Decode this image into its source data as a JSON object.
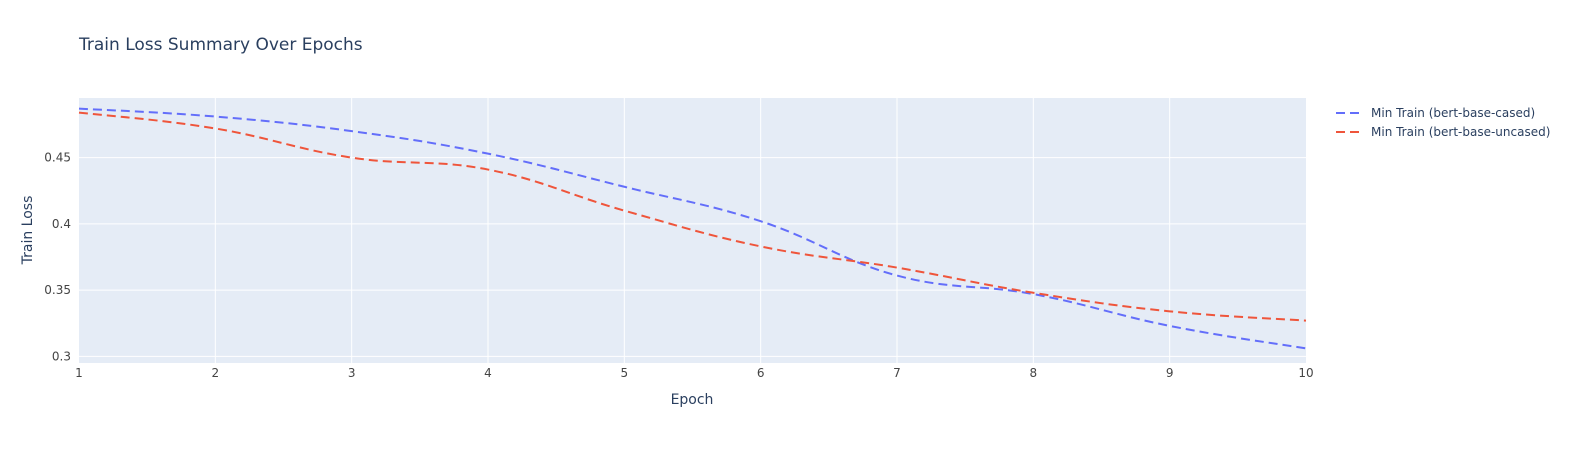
{
  "chart_data": {
    "type": "line",
    "title": "Train Loss Summary Over Epochs",
    "xlabel": "Epoch",
    "ylabel": "Train Loss",
    "xlim": [
      1,
      10
    ],
    "ylim": [
      0.295,
      0.495
    ],
    "x_ticks": [
      1,
      2,
      3,
      4,
      5,
      6,
      7,
      8,
      9,
      10
    ],
    "y_ticks": [
      0.3,
      0.35,
      0.4,
      0.45
    ],
    "y_tick_labels": [
      "0.3",
      "0.35",
      "0.4",
      "0.45"
    ],
    "grid": true,
    "legend_position": "right",
    "x": [
      1,
      2,
      3,
      4,
      5,
      6,
      7,
      8,
      9,
      10
    ],
    "series": [
      {
        "name": "Min Train (bert-base-cased)",
        "color": "#636efa",
        "dash": "dash",
        "values": [
          0.487,
          0.481,
          0.47,
          0.453,
          0.428,
          0.402,
          0.361,
          0.347,
          0.323,
          0.306
        ]
      },
      {
        "name": "Min Train (bert-base-uncased)",
        "color": "#ef553b",
        "dash": "dash",
        "values": [
          0.484,
          0.472,
          0.45,
          0.441,
          0.41,
          0.383,
          0.367,
          0.348,
          0.334,
          0.327
        ]
      }
    ]
  },
  "colors": {
    "plot_bg": "#e5ecf6",
    "grid": "#ffffff",
    "text": "#2a3f5f",
    "tick_text": "#444444"
  }
}
